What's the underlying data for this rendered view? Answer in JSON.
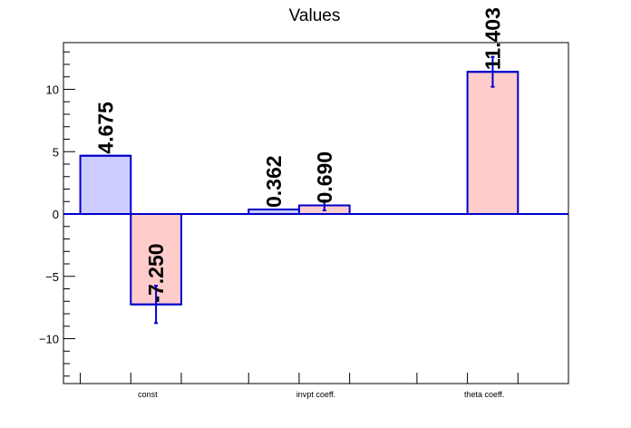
{
  "chart_data": {
    "type": "bar",
    "title": "Values",
    "categories": [
      "const",
      "invpt coeff.",
      "theta coeff."
    ],
    "series": [
      {
        "color": "#ccccff",
        "values": [
          4.675,
          0.362,
          null
        ],
        "labels": [
          "4.675",
          "0.362",
          ""
        ],
        "errors": [
          0,
          0,
          0
        ]
      },
      {
        "color": "#ffcccc",
        "values": [
          -7.25,
          0.69,
          11.403
        ],
        "labels": [
          "-7.250",
          "0.690",
          "11.403"
        ],
        "errors": [
          1.5,
          0.4,
          1.2
        ]
      }
    ],
    "ylim": [
      -13.8,
      13.8
    ],
    "yticks": [
      -10,
      -5,
      0,
      5,
      10
    ],
    "ytick_labels": [
      "−10",
      "−5",
      "0",
      "5",
      "10"
    ],
    "grid": false,
    "bar_edge_color": "#0000cc"
  }
}
